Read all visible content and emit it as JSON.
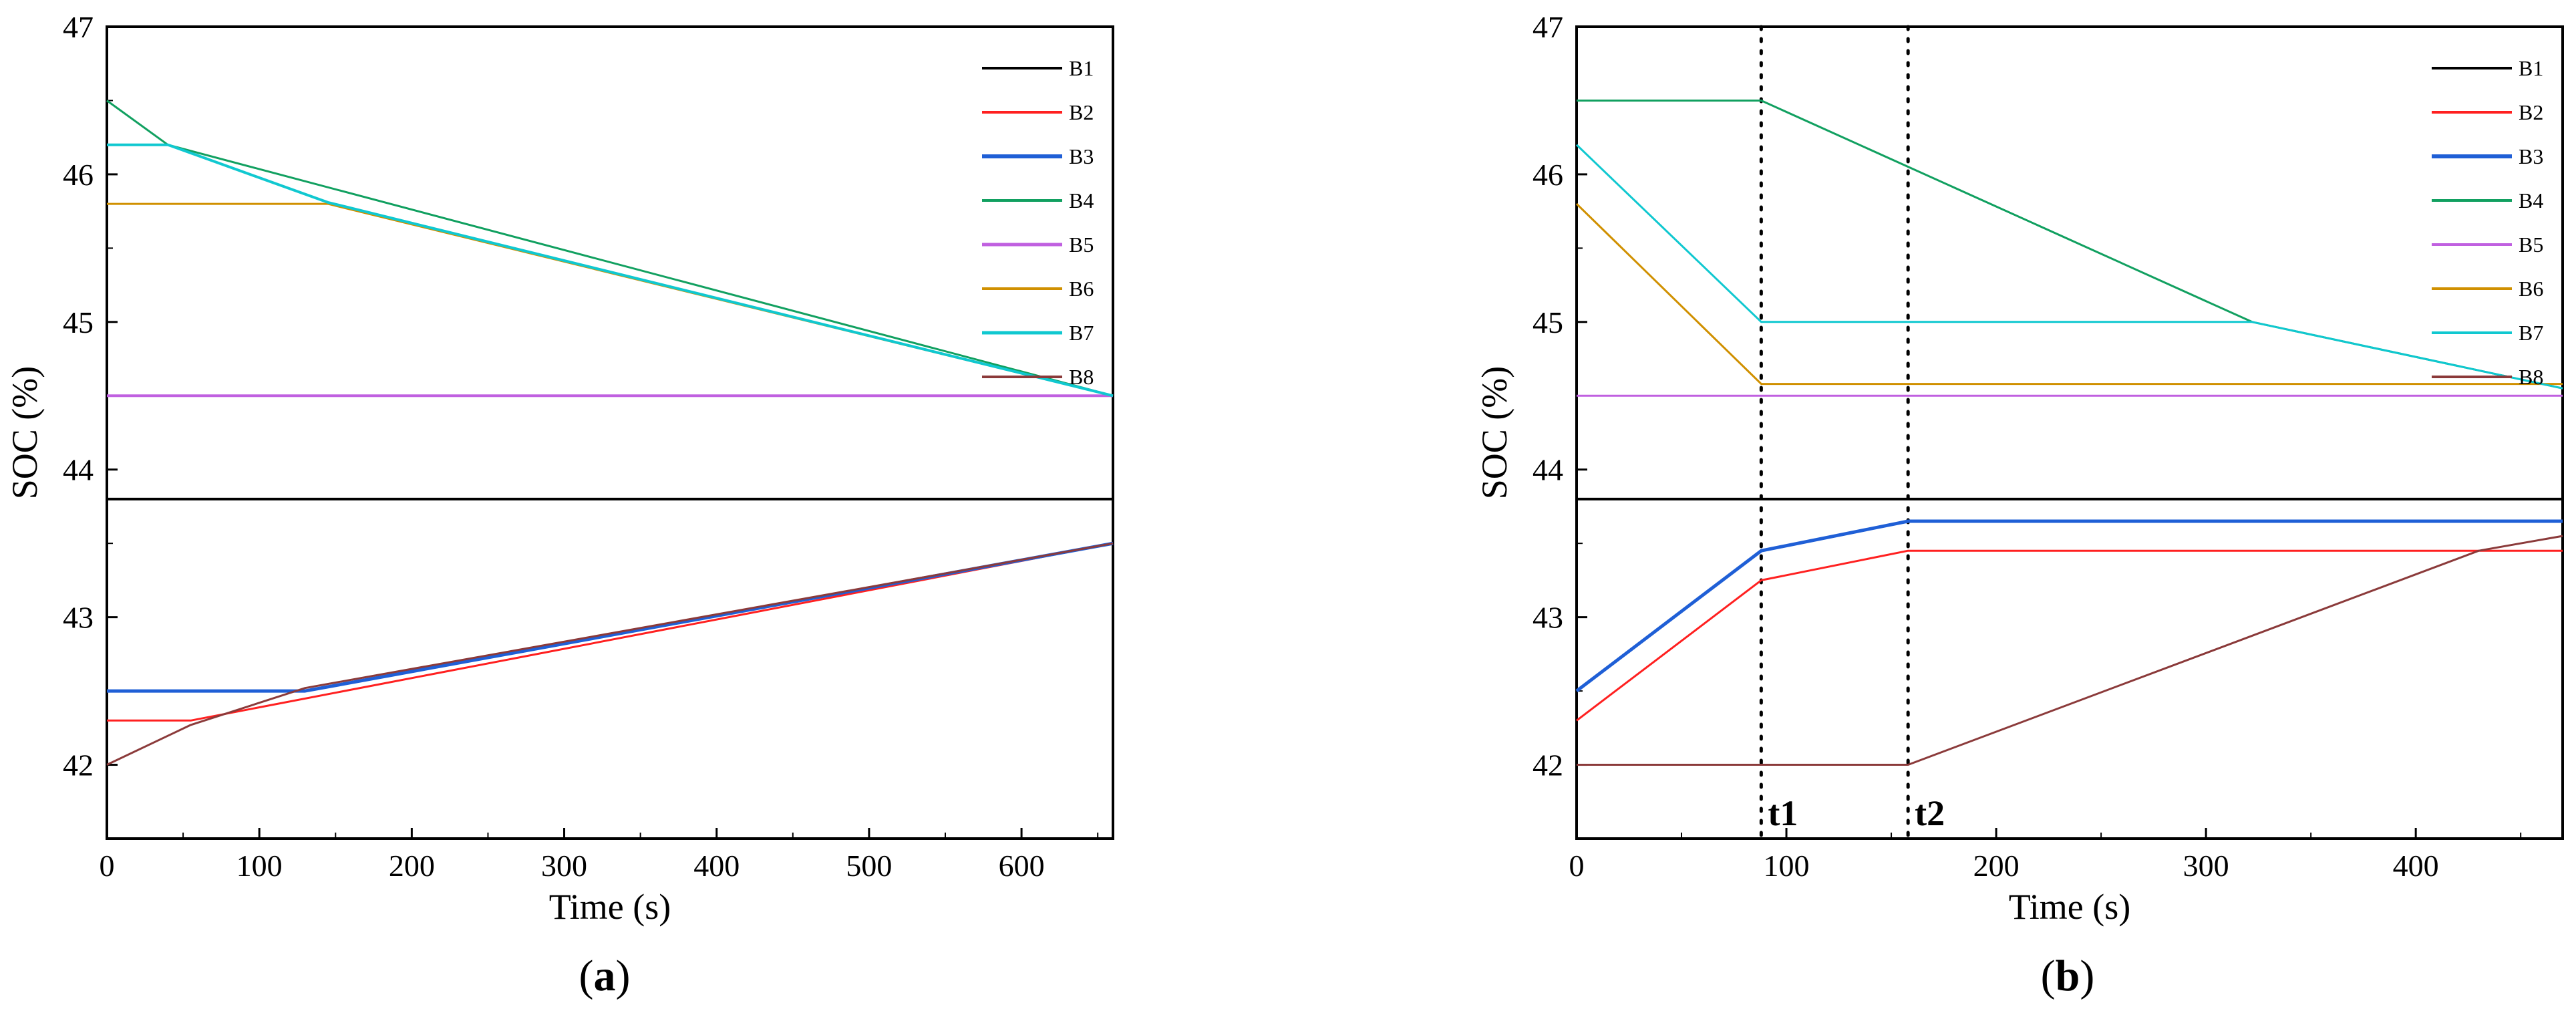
{
  "chart_data": [
    {
      "type": "line",
      "caption": "(a)",
      "caption_letter": "a",
      "xlabel": "Time (s)",
      "ylabel": "SOC (%)",
      "xlim": [
        0,
        660
      ],
      "ylim": [
        41.5,
        47
      ],
      "xticks": [
        0,
        100,
        200,
        300,
        400,
        500,
        600
      ],
      "yticks": [
        42,
        43,
        44,
        45,
        46,
        47
      ],
      "hline": 43.8,
      "legend_position": "top-right",
      "series": [
        {
          "name": "B1",
          "color": "#000000",
          "width": 3,
          "x": [],
          "y": []
        },
        {
          "name": "B2",
          "color": "#ff2020",
          "width": 3,
          "x": [
            0,
            55,
            660
          ],
          "y": [
            42.3,
            42.3,
            43.5
          ]
        },
        {
          "name": "B3",
          "color": "#1f5fd6",
          "width": 5,
          "x": [
            0,
            130,
            660
          ],
          "y": [
            42.5,
            42.5,
            43.5
          ]
        },
        {
          "name": "B4",
          "color": "#11a060",
          "width": 3,
          "x": [
            0,
            40,
            660
          ],
          "y": [
            46.5,
            46.2,
            44.5
          ]
        },
        {
          "name": "B5",
          "color": "#c060e0",
          "width": 4,
          "x": [
            0,
            660
          ],
          "y": [
            44.5,
            44.5
          ]
        },
        {
          "name": "B6",
          "color": "#d09000",
          "width": 3,
          "x": [
            0,
            145,
            660
          ],
          "y": [
            45.8,
            45.8,
            44.5
          ]
        },
        {
          "name": "B7",
          "color": "#10c8d0",
          "width": 4,
          "x": [
            0,
            40,
            145,
            660
          ],
          "y": [
            46.2,
            46.2,
            45.81,
            44.5
          ]
        },
        {
          "name": "B8",
          "color": "#8b3a3a",
          "width": 3,
          "x": [
            0,
            55,
            130,
            660
          ],
          "y": [
            42.0,
            42.27,
            42.52,
            43.5
          ]
        }
      ],
      "annotations": []
    },
    {
      "type": "line",
      "caption": "(b)",
      "caption_letter": "b",
      "xlabel": "Time (s)",
      "ylabel": "SOC (%)",
      "xlim": [
        0,
        470
      ],
      "ylim": [
        41.5,
        47
      ],
      "xticks": [
        0,
        100,
        200,
        300,
        400
      ],
      "yticks": [
        42,
        43,
        44,
        45,
        46,
        47
      ],
      "hline": 43.8,
      "legend_position": "top-right",
      "series": [
        {
          "name": "B1",
          "color": "#000000",
          "width": 3,
          "x": [],
          "y": []
        },
        {
          "name": "B2",
          "color": "#ff2020",
          "width": 3,
          "x": [
            0,
            88,
            158,
            470
          ],
          "y": [
            42.3,
            43.25,
            43.45,
            43.45
          ]
        },
        {
          "name": "B3",
          "color": "#1f5fd6",
          "width": 5,
          "x": [
            0,
            88,
            158,
            470
          ],
          "y": [
            42.5,
            43.45,
            43.65,
            43.65
          ]
        },
        {
          "name": "B4",
          "color": "#11a060",
          "width": 3,
          "x": [
            0,
            88,
            322,
            470
          ],
          "y": [
            46.5,
            46.5,
            45.0,
            44.55
          ]
        },
        {
          "name": "B5",
          "color": "#c060e0",
          "width": 3,
          "x": [
            0,
            470
          ],
          "y": [
            44.5,
            44.5
          ]
        },
        {
          "name": "B6",
          "color": "#d09000",
          "width": 3,
          "x": [
            0,
            88,
            470
          ],
          "y": [
            45.8,
            44.58,
            44.58
          ]
        },
        {
          "name": "B7",
          "color": "#10c8d0",
          "width": 3,
          "x": [
            0,
            88,
            322,
            470
          ],
          "y": [
            46.2,
            45.0,
            45.0,
            44.55
          ]
        },
        {
          "name": "B8",
          "color": "#8b3a3a",
          "width": 3,
          "x": [
            0,
            158,
            430,
            470
          ],
          "y": [
            42.0,
            42.0,
            43.45,
            43.55
          ]
        }
      ],
      "annotations": [
        {
          "label": "t1",
          "x": 88
        },
        {
          "label": "t2",
          "x": 158
        }
      ]
    }
  ]
}
